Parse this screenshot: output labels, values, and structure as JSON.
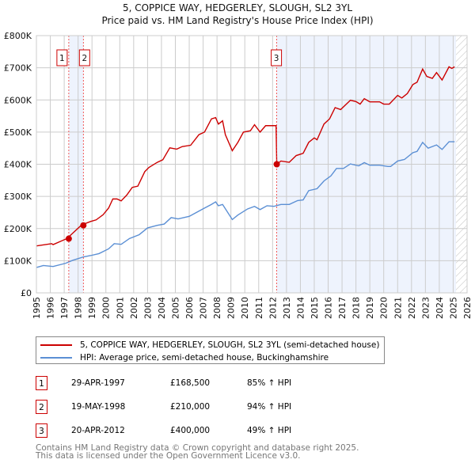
{
  "chart_data": {
    "type": "line",
    "title": "5, COPPICE WAY, HEDGERLEY, SLOUGH, SL2 3YL",
    "subtitle": "Price paid vs. HM Land Registry's House Price Index (HPI)",
    "xlim": [
      1995,
      2026
    ],
    "ylim": [
      0,
      800000
    ],
    "x_ticks": [
      "1995",
      "1996",
      "1997",
      "1998",
      "1999",
      "2000",
      "2001",
      "2002",
      "2003",
      "2004",
      "2005",
      "2006",
      "2007",
      "2008",
      "2009",
      "2010",
      "2011",
      "2012",
      "2013",
      "2014",
      "2015",
      "2016",
      "2017",
      "2018",
      "2019",
      "2020",
      "2021",
      "2022",
      "2023",
      "2024",
      "2025",
      "2026"
    ],
    "y_ticks": [
      {
        "v": 0,
        "label": "£0"
      },
      {
        "v": 100000,
        "label": "£100K"
      },
      {
        "v": 200000,
        "label": "£200K"
      },
      {
        "v": 300000,
        "label": "£300K"
      },
      {
        "v": 400000,
        "label": "£400K"
      },
      {
        "v": 500000,
        "label": "£500K"
      },
      {
        "v": 600000,
        "label": "£600K"
      },
      {
        "v": 700000,
        "label": "£700K"
      },
      {
        "v": 800000,
        "label": "£800K"
      }
    ],
    "grid": true,
    "series": [
      {
        "name": "5, COPPICE WAY, HEDGERLEY, SLOUGH, SL2 3YL (semi-detached house)",
        "color": "#cc0000",
        "x": [
          1995.0,
          1996.1,
          1996.2,
          1997.2,
          1998.25,
          1998.9,
          1999.3,
          1999.8,
          2000.2,
          2000.5,
          2000.8,
          2001.1,
          2001.5,
          2001.9,
          2002.3,
          2002.8,
          2003.1,
          2003.7,
          2004.1,
          2004.6,
          2005.1,
          2005.5,
          2006.1,
          2006.7,
          2007.1,
          2007.6,
          2007.9,
          2008.1,
          2008.4,
          2008.6,
          2009.1,
          2009.5,
          2009.9,
          2010.4,
          2010.7,
          2011.1,
          2011.5,
          2011.9,
          2012.25,
          2012.3,
          2012.6,
          2013.2,
          2013.7,
          2014.2,
          2014.6,
          2015.0,
          2015.2,
          2015.7,
          2016.1,
          2016.5,
          2016.9,
          2017.6,
          2018.0,
          2018.3,
          2018.6,
          2019.0,
          2019.7,
          2020.0,
          2020.4,
          2021.0,
          2021.3,
          2021.7,
          2022.1,
          2022.4,
          2022.8,
          2023.1,
          2023.5,
          2023.8,
          2024.2,
          2024.7,
          2024.9,
          2025.1
        ],
        "y": [
          146000,
          153000,
          150000,
          169000,
          211000,
          222000,
          227000,
          243000,
          264000,
          292000,
          292000,
          286000,
          304000,
          328000,
          332000,
          377000,
          390000,
          406000,
          414000,
          451000,
          447000,
          455000,
          459000,
          492000,
          500000,
          541000,
          545000,
          525000,
          535000,
          492000,
          442000,
          468000,
          500000,
          504000,
          523000,
          500000,
          520000,
          520000,
          520000,
          400000,
          410000,
          406000,
          427000,
          434000,
          468000,
          482000,
          476000,
          525000,
          541000,
          576000,
          570000,
          599000,
          595000,
          587000,
          604000,
          594000,
          594000,
          587000,
          587000,
          614000,
          606000,
          620000,
          648000,
          655000,
          696000,
          673000,
          667000,
          685000,
          662000,
          703000,
          698000,
          703000
        ]
      },
      {
        "name": "HPI: Average price, semi-detached house, Buckinghamshire",
        "color": "#5b8fd4",
        "x": [
          1995.0,
          1995.5,
          1996.2,
          1997.1,
          1997.6,
          1998.4,
          1998.9,
          1999.5,
          2000.2,
          2000.6,
          2001.1,
          2001.7,
          2002.4,
          2003.0,
          2003.7,
          2004.2,
          2004.7,
          2005.2,
          2006.0,
          2006.9,
          2007.6,
          2007.9,
          2008.1,
          2008.4,
          2009.1,
          2009.5,
          2010.2,
          2010.7,
          2011.1,
          2011.6,
          2012.1,
          2012.6,
          2013.2,
          2013.8,
          2014.2,
          2014.6,
          2015.2,
          2015.7,
          2016.2,
          2016.6,
          2017.1,
          2017.6,
          2018.2,
          2018.6,
          2019.0,
          2019.7,
          2020.3,
          2020.5,
          2021.0,
          2021.5,
          2022.1,
          2022.4,
          2022.8,
          2023.2,
          2023.8,
          2024.2,
          2024.7,
          2025.1
        ],
        "y": [
          79000,
          85000,
          82000,
          92000,
          101000,
          112000,
          116000,
          122000,
          137000,
          153000,
          151000,
          169000,
          181000,
          202000,
          210000,
          214000,
          234000,
          230000,
          238000,
          259000,
          275000,
          283000,
          271000,
          275000,
          228000,
          242000,
          261000,
          269000,
          259000,
          271000,
          269000,
          275000,
          275000,
          287000,
          289000,
          318000,
          324000,
          348000,
          364000,
          387000,
          387000,
          401000,
          395000,
          405000,
          397000,
          397000,
          393000,
          393000,
          410000,
          415000,
          436000,
          440000,
          468000,
          450000,
          460000,
          446000,
          470000,
          470000
        ]
      }
    ],
    "shaded_periods": [
      [
        1997.33,
        1998.38
      ],
      [
        2012.3,
        2025.2
      ]
    ],
    "hatched_from": 2025.2,
    "sales": [
      {
        "label": "1",
        "x": 1997.33,
        "y": 168500
      },
      {
        "label": "2",
        "x": 1998.38,
        "y": 210000
      },
      {
        "label": "3",
        "x": 2012.3,
        "y": 400000
      }
    ],
    "legend_placement": "below"
  },
  "legend": {
    "property": "5, COPPICE WAY, HEDGERLEY, SLOUGH, SL2 3YL (semi-detached house)",
    "hpi": "HPI: Average price, semi-detached house, Buckinghamshire"
  },
  "transactions": [
    {
      "num": "1",
      "date": "29-APR-1997",
      "price": "£168,500",
      "hpi": "85% ↑ HPI"
    },
    {
      "num": "2",
      "date": "19-MAY-1998",
      "price": "£210,000",
      "hpi": "94% ↑ HPI"
    },
    {
      "num": "3",
      "date": "20-APR-2012",
      "price": "£400,000",
      "hpi": "49% ↑ HPI"
    }
  ],
  "footer": {
    "line1": "Contains HM Land Registry data © Crown copyright and database right 2025.",
    "line2": "This data is licensed under the Open Government Licence v3.0."
  }
}
